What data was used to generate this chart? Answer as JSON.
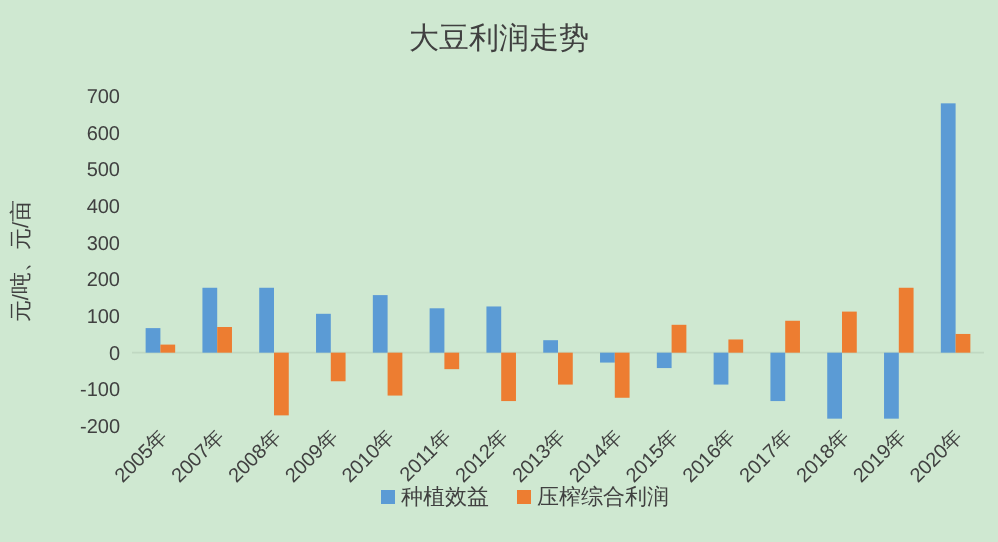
{
  "chart_data": {
    "type": "bar",
    "title": "大豆利润走势",
    "ylabel": "元/吨、元/亩",
    "categories": [
      "2005年",
      "2007年",
      "2008年",
      "2009年",
      "2010年",
      "2011年",
      "2012年",
      "2013年",
      "2014年",
      "2015年",
      "2016年",
      "2017年",
      "2018年",
      "2019年",
      "2020年"
    ],
    "series": [
      {
        "name": "种植效益",
        "color": "#5b9bd5",
        "values": [
          67,
          177,
          177,
          106,
          157,
          121,
          126,
          34,
          -27,
          -42,
          -87,
          -132,
          -180,
          -180,
          680
        ]
      },
      {
        "name": "压榨综合利润",
        "color": "#ed7d31",
        "values": [
          22,
          70,
          -171,
          -78,
          -117,
          -45,
          -132,
          -87,
          -123,
          76,
          36,
          87,
          112,
          177,
          51
        ]
      }
    ],
    "ylim": [
      -200,
      700
    ],
    "yticks": [
      -200,
      -100,
      0,
      100,
      200,
      300,
      400,
      500,
      600,
      700
    ],
    "legend": "bottom"
  }
}
